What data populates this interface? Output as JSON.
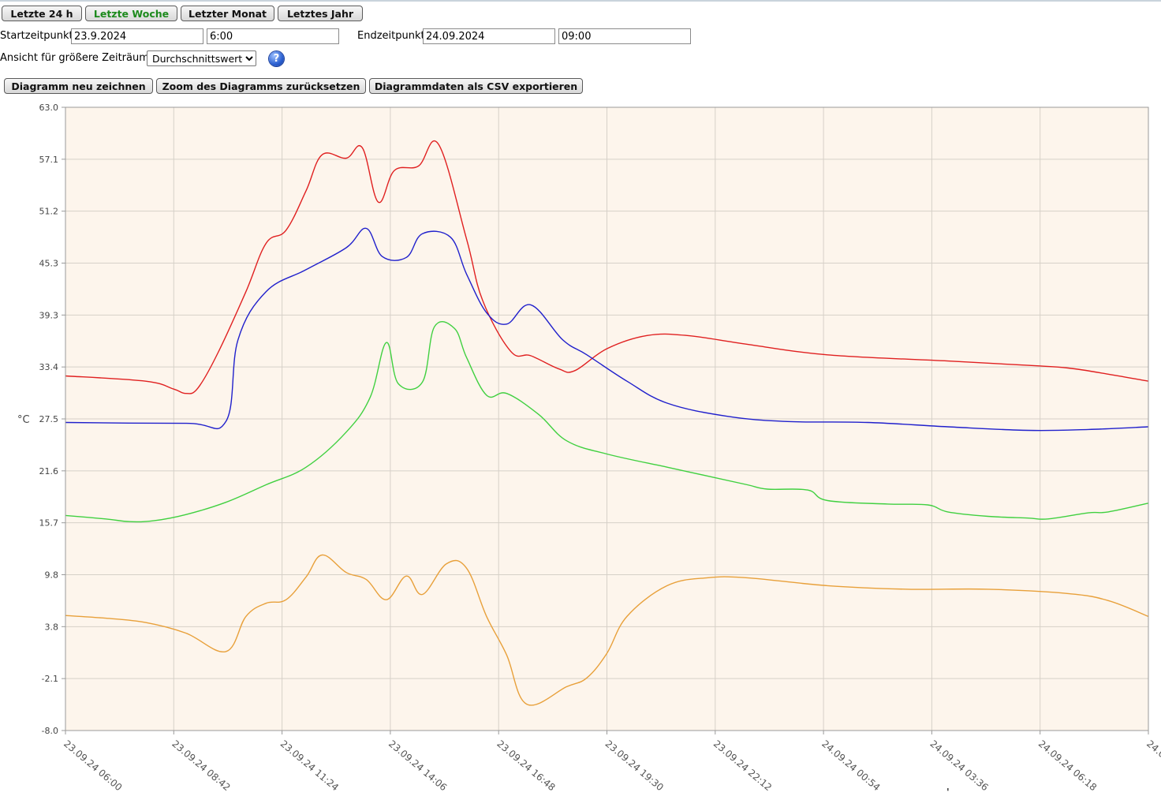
{
  "buttons": {
    "last_24h": "Letzte 24 h",
    "last_week": "Letzte Woche",
    "last_month": "Letzter Monat",
    "last_year": "Letztes Jahr",
    "redraw": "Diagramm neu zeichnen",
    "reset_zoom": "Zoom des Diagramms zurücksetzen",
    "export_csv": "Diagrammdaten als CSV exportieren"
  },
  "range": {
    "start_label": "Startzeitpunkt",
    "start_date": "23.9.2024",
    "start_time": "6:00",
    "end_label": "Endzeitpunkt",
    "end_date": "24.09.2024",
    "end_time": "09:00"
  },
  "view": {
    "label": "Ansicht für größere Zeiträume",
    "selected": "Durchschnittswerte",
    "help_icon": "help-icon"
  },
  "stray_mark": "'",
  "chart_data": {
    "type": "line",
    "ylabel": "°C",
    "ylim": [
      -8.0,
      63.0
    ],
    "yticks": [
      "63.0",
      "57.1",
      "51.2",
      "45.3",
      "39.3",
      "33.4",
      "27.5",
      "21.6",
      "15.7",
      "9.8",
      "3.8",
      "-2.1",
      "-8.0"
    ],
    "xlim_hours": [
      0,
      27
    ],
    "xticks": [
      "23.09.24 06:00",
      "23.09.24 08:42",
      "23.09.24 11:24",
      "23.09.24 14:06",
      "23.09.24 16:48",
      "23.09.24 19:30",
      "23.09.24 22:12",
      "24.09.24 00:54",
      "24.09.24 03:36",
      "24.09.24 06:18",
      "24.0"
    ],
    "grid": true,
    "background": "#fdf5ec",
    "series": [
      {
        "color": "#e02020",
        "points": [
          [
            0,
            32.4
          ],
          [
            2.0,
            31.8
          ],
          [
            2.7,
            30.9
          ],
          [
            3.0,
            30.4
          ],
          [
            3.3,
            31.0
          ],
          [
            3.8,
            35.0
          ],
          [
            4.5,
            42.0
          ],
          [
            5.0,
            47.5
          ],
          [
            5.5,
            49.0
          ],
          [
            6.0,
            53.5
          ],
          [
            6.4,
            57.6
          ],
          [
            7.0,
            57.2
          ],
          [
            7.4,
            58.4
          ],
          [
            7.8,
            52.2
          ],
          [
            8.2,
            55.8
          ],
          [
            8.8,
            56.3
          ],
          [
            9.3,
            58.8
          ],
          [
            10.0,
            48.0
          ],
          [
            10.4,
            41.0
          ],
          [
            11.1,
            35.2
          ],
          [
            11.6,
            34.7
          ],
          [
            12.3,
            33.2
          ],
          [
            12.7,
            33.0
          ],
          [
            13.5,
            35.5
          ],
          [
            14.5,
            37.0
          ],
          [
            15.5,
            37.0
          ],
          [
            17.0,
            36.0
          ],
          [
            19.0,
            34.8
          ],
          [
            22.0,
            34.1
          ],
          [
            24.0,
            33.6
          ],
          [
            25.0,
            33.3
          ],
          [
            26.0,
            32.6
          ],
          [
            27.0,
            31.8
          ]
        ]
      },
      {
        "color": "#2020cc",
        "points": [
          [
            0,
            27.1
          ],
          [
            3.0,
            27.0
          ],
          [
            4.0,
            27.2
          ],
          [
            4.3,
            36.5
          ],
          [
            5.0,
            42.0
          ],
          [
            6.0,
            44.5
          ],
          [
            7.0,
            47.0
          ],
          [
            7.5,
            49.2
          ],
          [
            7.9,
            46.0
          ],
          [
            8.5,
            45.9
          ],
          [
            8.9,
            48.6
          ],
          [
            9.6,
            48.2
          ],
          [
            10.0,
            44.0
          ],
          [
            10.5,
            39.6
          ],
          [
            11.0,
            38.3
          ],
          [
            11.6,
            40.5
          ],
          [
            12.4,
            36.5
          ],
          [
            13.0,
            34.8
          ],
          [
            14.0,
            31.8
          ],
          [
            15.0,
            29.3
          ],
          [
            16.5,
            27.8
          ],
          [
            18.0,
            27.2
          ],
          [
            20.0,
            27.1
          ],
          [
            22.0,
            26.6
          ],
          [
            24.0,
            26.2
          ],
          [
            25.5,
            26.3
          ],
          [
            27.0,
            26.6
          ]
        ]
      },
      {
        "color": "#40d040",
        "points": [
          [
            0,
            16.5
          ],
          [
            1.0,
            16.1
          ],
          [
            1.6,
            15.8
          ],
          [
            2.2,
            15.9
          ],
          [
            3.0,
            16.6
          ],
          [
            4.0,
            18.0
          ],
          [
            5.0,
            20.0
          ],
          [
            6.0,
            22.0
          ],
          [
            7.0,
            26.0
          ],
          [
            7.6,
            30.0
          ],
          [
            8.0,
            36.2
          ],
          [
            8.3,
            31.5
          ],
          [
            8.9,
            31.7
          ],
          [
            9.2,
            38.0
          ],
          [
            9.7,
            37.8
          ],
          [
            10.0,
            34.5
          ],
          [
            10.5,
            30.2
          ],
          [
            11.0,
            30.4
          ],
          [
            11.8,
            28.0
          ],
          [
            12.5,
            25.0
          ],
          [
            13.5,
            23.5
          ],
          [
            15.0,
            22.0
          ],
          [
            16.0,
            21.0
          ],
          [
            17.0,
            20.0
          ],
          [
            17.5,
            19.5
          ],
          [
            18.5,
            19.4
          ],
          [
            19.0,
            18.2
          ],
          [
            20.5,
            17.8
          ],
          [
            21.5,
            17.7
          ],
          [
            22.0,
            16.9
          ],
          [
            23.0,
            16.4
          ],
          [
            24.0,
            16.2
          ],
          [
            24.5,
            16.1
          ],
          [
            25.5,
            16.8
          ],
          [
            26.0,
            16.9
          ],
          [
            27.0,
            17.9
          ]
        ]
      },
      {
        "color": "#e8a03a",
        "points": [
          [
            0,
            5.1
          ],
          [
            1.0,
            4.8
          ],
          [
            2.0,
            4.3
          ],
          [
            3.0,
            3.1
          ],
          [
            4.0,
            1.0
          ],
          [
            4.5,
            5.0
          ],
          [
            5.0,
            6.5
          ],
          [
            5.5,
            6.9
          ],
          [
            6.0,
            9.5
          ],
          [
            6.4,
            12.0
          ],
          [
            7.0,
            10.0
          ],
          [
            7.5,
            9.2
          ],
          [
            8.0,
            6.9
          ],
          [
            8.5,
            9.6
          ],
          [
            8.9,
            7.5
          ],
          [
            9.5,
            11.0
          ],
          [
            10.0,
            10.5
          ],
          [
            10.5,
            5.0
          ],
          [
            11.0,
            0.6
          ],
          [
            11.5,
            -5.0
          ],
          [
            12.5,
            -3.0
          ],
          [
            13.0,
            -2.0
          ],
          [
            13.5,
            0.8
          ],
          [
            14.0,
            5.0
          ],
          [
            15.0,
            8.5
          ],
          [
            16.0,
            9.4
          ],
          [
            17.0,
            9.4
          ],
          [
            19.0,
            8.5
          ],
          [
            21.0,
            8.1
          ],
          [
            23.0,
            8.1
          ],
          [
            25.0,
            7.6
          ],
          [
            26.0,
            6.8
          ],
          [
            27.0,
            5.0
          ]
        ]
      }
    ]
  }
}
